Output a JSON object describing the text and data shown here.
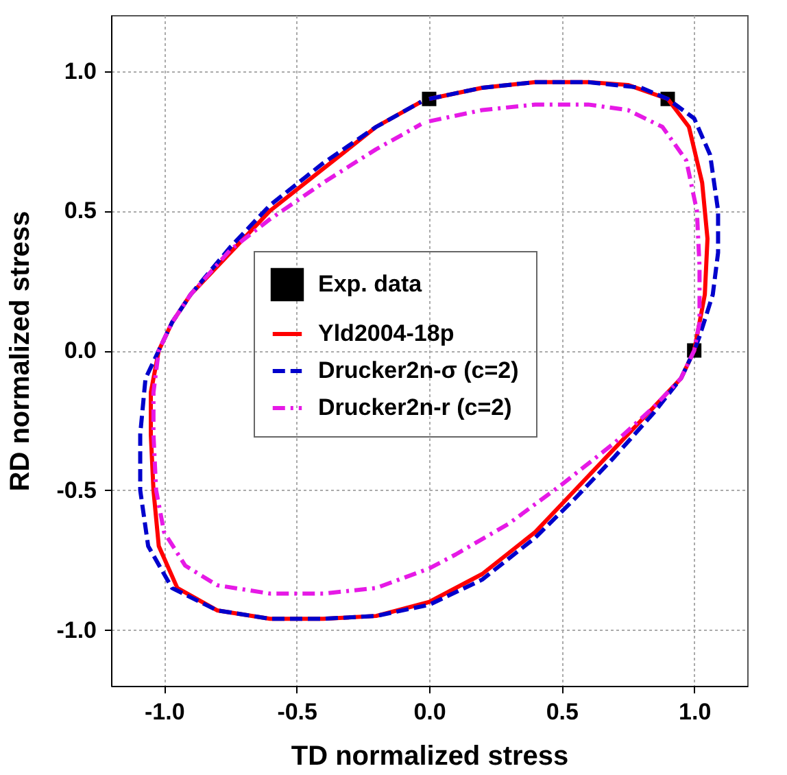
{
  "chart_data": {
    "type": "line",
    "xlabel": "TD normalized stress",
    "ylabel": "RD normalized stress",
    "xlim": [
      -1.2,
      1.2
    ],
    "ylim": [
      -1.2,
      1.2
    ],
    "xticks": [
      {
        "value": -1,
        "label": "-1.0"
      },
      -0.5,
      {
        "value": 0,
        "label": "0.0"
      },
      0.5,
      {
        "value": 1,
        "label": "1.0"
      }
    ],
    "yticks": [
      {
        "value": -1,
        "label": "-1.0"
      },
      -0.5,
      {
        "value": 0,
        "label": "0.0"
      },
      0.5,
      {
        "value": 1,
        "label": "1.0"
      }
    ],
    "grid": true,
    "legend": "left",
    "series": [
      {
        "name": "Exp. data",
        "type": "scatter",
        "marker": "square",
        "color": "#000000",
        "x": [
          0.0,
          0.9,
          1.0
        ],
        "values": [
          0.9,
          0.9,
          0.0
        ]
      },
      {
        "name": "Yld2004-18p",
        "line_style": "solid",
        "color": "#ff0000",
        "x": [
          0,
          0.2,
          0.4,
          0.6,
          0.75,
          0.9,
          0.98,
          1.03,
          1.05,
          1.04,
          1.02,
          1.0,
          0.95,
          0.85,
          0.7,
          0.55,
          0.4,
          0.2,
          0.0,
          -0.2,
          -0.4,
          -0.6,
          -0.8,
          -0.95,
          -1.02,
          -1.04,
          -1.05,
          -1.05,
          -1.02,
          -0.97,
          -0.9,
          -0.75,
          -0.6,
          -0.4,
          -0.2,
          -0.03
        ],
        "values": [
          0.9,
          0.94,
          0.96,
          0.96,
          0.95,
          0.9,
          0.8,
          0.6,
          0.4,
          0.2,
          0.1,
          0.0,
          -0.1,
          -0.2,
          -0.35,
          -0.5,
          -0.65,
          -0.8,
          -0.9,
          -0.95,
          -0.96,
          -0.96,
          -0.93,
          -0.85,
          -0.7,
          -0.5,
          -0.3,
          -0.15,
          0.0,
          0.1,
          0.2,
          0.35,
          0.5,
          0.65,
          0.8,
          0.89
        ]
      },
      {
        "name": "Drucker2n-σ (c=2)",
        "line_style": "dashed",
        "color": "#0000cc",
        "x": [
          0,
          0.2,
          0.4,
          0.6,
          0.8,
          0.9,
          1.0,
          1.06,
          1.09,
          1.09,
          1.07,
          1.02,
          1.0,
          0.95,
          0.85,
          0.7,
          0.55,
          0.4,
          0.2,
          0,
          -0.2,
          -0.4,
          -0.6,
          -0.8,
          -0.97,
          -1.06,
          -1.09,
          -1.09,
          -1.07,
          -1.02,
          -0.97,
          -0.9,
          -0.75,
          -0.6,
          -0.4,
          -0.2,
          -0.03
        ],
        "values": [
          0.9,
          0.94,
          0.96,
          0.96,
          0.94,
          0.9,
          0.83,
          0.7,
          0.5,
          0.35,
          0.2,
          0.05,
          0.0,
          -0.1,
          -0.22,
          -0.38,
          -0.53,
          -0.67,
          -0.82,
          -0.91,
          -0.95,
          -0.96,
          -0.96,
          -0.93,
          -0.85,
          -0.7,
          -0.5,
          -0.3,
          -0.1,
          0.0,
          0.1,
          0.2,
          0.37,
          0.52,
          0.67,
          0.8,
          0.89
        ]
      },
      {
        "name": "Drucker2n-r  (c=2)",
        "line_style": "dashdot",
        "color": "#e619e6",
        "x": [
          0,
          0.2,
          0.4,
          0.6,
          0.75,
          0.88,
          0.97,
          1.01,
          1.02,
          1.02,
          1.0,
          0.95,
          0.85,
          0.7,
          0.5,
          0.3,
          0.1,
          0,
          -0.2,
          -0.4,
          -0.6,
          -0.8,
          -0.92,
          -1.0,
          -1.03,
          -1.04,
          -1.04,
          -1.02,
          -0.97,
          -0.9,
          -0.75,
          -0.6,
          -0.4,
          -0.2,
          -0.03
        ],
        "values": [
          0.82,
          0.86,
          0.88,
          0.88,
          0.86,
          0.8,
          0.68,
          0.5,
          0.3,
          0.1,
          0.0,
          -0.1,
          -0.2,
          -0.33,
          -0.48,
          -0.62,
          -0.73,
          -0.78,
          -0.85,
          -0.87,
          -0.87,
          -0.84,
          -0.77,
          -0.65,
          -0.5,
          -0.3,
          -0.15,
          0.0,
          0.1,
          0.2,
          0.36,
          0.47,
          0.6,
          0.72,
          0.81
        ]
      }
    ]
  }
}
